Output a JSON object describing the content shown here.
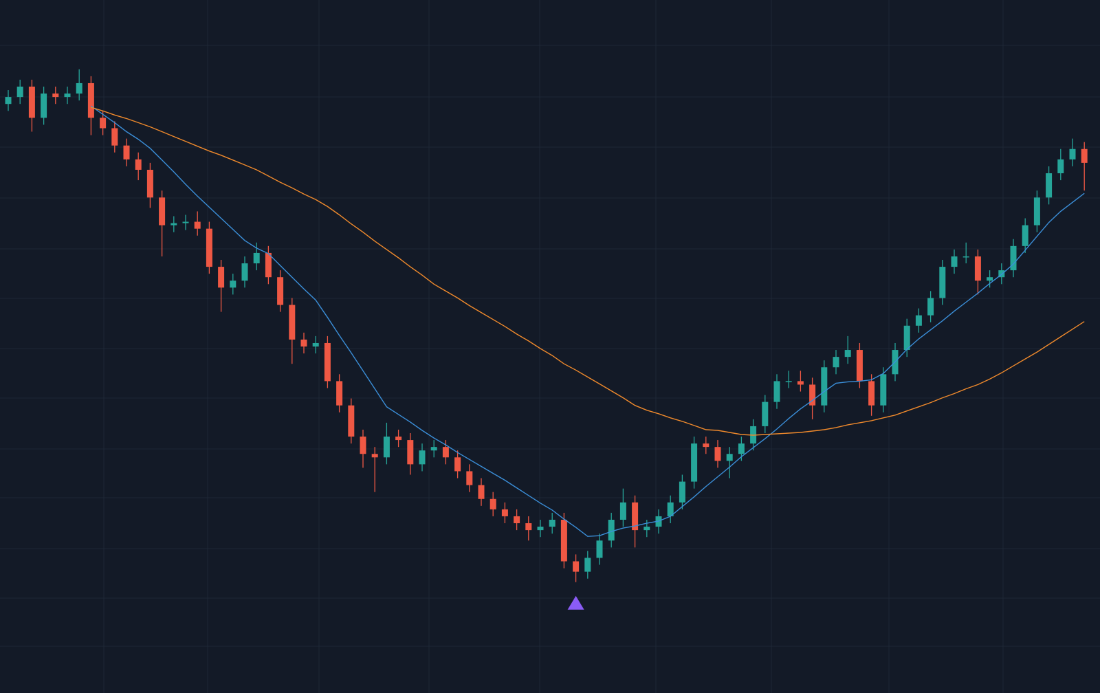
{
  "chart_data": {
    "type": "candlestick",
    "ylim": [
      0,
      100
    ],
    "grid": true,
    "up_color": "#26a69a",
    "down_color": "#ef5844",
    "open": [
      85,
      86,
      87.5,
      83,
      86.5,
      86,
      86.5,
      88,
      83,
      81.5,
      79,
      77,
      75.5,
      71.5,
      67.5,
      67.8,
      68,
      67,
      61.5,
      58.5,
      59.5,
      62,
      63.5,
      60,
      56,
      51,
      50,
      50.5,
      45,
      41.5,
      37,
      34.5,
      34,
      37,
      36.5,
      33,
      35,
      35.5,
      34,
      32,
      30,
      28,
      26.5,
      25.5,
      24.5,
      23.5,
      24,
      25,
      19,
      17.5,
      19.5,
      22,
      25,
      27.5,
      23.5,
      24,
      25.5,
      27.5,
      30.5,
      36,
      35.5,
      33.5,
      34.5,
      36,
      38.5,
      42,
      45,
      45,
      44.5,
      41.5,
      47,
      48.5,
      49.5,
      45,
      41.5,
      46,
      49.5,
      53,
      54.5,
      57,
      61.5,
      63,
      63,
      59.5,
      60,
      61,
      64.5,
      67.5,
      71.5,
      75,
      77,
      78.5
    ],
    "high": [
      87,
      88.5,
      88.5,
      87.5,
      87.5,
      87.5,
      90,
      89,
      84,
      82.5,
      80,
      78,
      76.5,
      72.5,
      68.8,
      69,
      69.5,
      68,
      62.5,
      60.5,
      63,
      65,
      64.5,
      61,
      57,
      52,
      51.5,
      51.5,
      46,
      42.5,
      38,
      35.5,
      39,
      38,
      37.5,
      36,
      36.5,
      36.5,
      35,
      33,
      31,
      29,
      27.5,
      26.5,
      25.5,
      25,
      26,
      26,
      20,
      20.5,
      23,
      26,
      29.5,
      28.5,
      25,
      26.5,
      28.5,
      31.5,
      37,
      37,
      36.5,
      35.5,
      37,
      39.5,
      43,
      46,
      46.5,
      46.5,
      45.5,
      48,
      49.5,
      51.5,
      50.5,
      46,
      47,
      50.5,
      54,
      55.5,
      58,
      62.5,
      64,
      65,
      64,
      61,
      62,
      65.5,
      68.5,
      72.5,
      76,
      78.5,
      80,
      79.5
    ],
    "low": [
      84,
      85,
      81,
      82,
      85,
      85,
      85.5,
      80.5,
      80.5,
      78,
      76,
      74,
      70,
      63,
      66.5,
      66.8,
      66,
      60.5,
      55,
      57.5,
      58.5,
      61,
      59,
      55,
      47.5,
      49,
      49,
      44,
      40.5,
      36,
      32.5,
      29,
      33,
      35.5,
      31.5,
      32,
      34,
      33,
      31,
      29,
      27,
      25.5,
      24.5,
      23.5,
      22,
      22.5,
      23,
      18,
      16,
      16.5,
      18.5,
      21,
      24,
      21,
      22.5,
      23,
      24.5,
      26.5,
      29.5,
      34.5,
      32.5,
      31,
      33.5,
      35,
      37.5,
      41,
      44,
      43.5,
      39.5,
      40.5,
      46,
      47.5,
      44,
      40,
      40.5,
      45,
      48.5,
      52,
      53.5,
      56,
      60.5,
      62,
      57.5,
      58.5,
      59,
      60,
      63.5,
      66.5,
      70.5,
      74,
      76,
      72.5
    ],
    "close": [
      86,
      87.5,
      83,
      86.5,
      86,
      86.5,
      88,
      83,
      81.5,
      79,
      77,
      75.5,
      71.5,
      67.5,
      67.8,
      68,
      67,
      61.5,
      58.5,
      59.5,
      62,
      63.5,
      60,
      56,
      51,
      50,
      50.5,
      45,
      41.5,
      37,
      34.5,
      34,
      37,
      36.5,
      33,
      35,
      35.5,
      34,
      32,
      30,
      28,
      26.5,
      25.5,
      24.5,
      23.5,
      24,
      25,
      19,
      17.5,
      19.5,
      22,
      25,
      27.5,
      23.5,
      24,
      25.5,
      27.5,
      30.5,
      36,
      35.5,
      33.5,
      34.5,
      36,
      38.5,
      42,
      45,
      45,
      44.5,
      41.5,
      47,
      48.5,
      49.5,
      45,
      41.5,
      46,
      49.5,
      53,
      54.5,
      57,
      61.5,
      63,
      63,
      59.5,
      60,
      61,
      64.5,
      67.5,
      71.5,
      75,
      77,
      78.5,
      76.5
    ],
    "series": [
      {
        "color": "#3b8fd9",
        "values": [
          null,
          null,
          null,
          null,
          null,
          null,
          null,
          84.7,
          83.5,
          82.3,
          81.0,
          79.9,
          78.6,
          76.9,
          75.2,
          73.4,
          71.7,
          70.1,
          68.5,
          66.9,
          65.3,
          64.2,
          63.4,
          61.7,
          60.0,
          58.3,
          56.7,
          54.2,
          51.6,
          49.1,
          46.5,
          43.9,
          41.3,
          40.2,
          39.1,
          37.9,
          36.8,
          35.8,
          34.7,
          33.7,
          32.7,
          31.7,
          30.7,
          29.6,
          28.5,
          27.4,
          26.4,
          25.1,
          23.9,
          22.6,
          22.7,
          23.3,
          23.8,
          24.1,
          24.5,
          24.8,
          25.5,
          26.9,
          28.3,
          29.8,
          31.2,
          32.6,
          34.1,
          35.4,
          36.7,
          38.1,
          39.6,
          41.0,
          42.2,
          43.5,
          44.7,
          44.9,
          45.0,
          45.2,
          46.1,
          47.8,
          49.6,
          51.1,
          52.4,
          53.7,
          55.1,
          56.4,
          57.7,
          59.1,
          60.4,
          61.9,
          63.9,
          65.9,
          67.9,
          69.5,
          70.8,
          72.1
        ]
      },
      {
        "color": "#f08a2c",
        "values": [
          null,
          null,
          null,
          null,
          null,
          null,
          null,
          84.5,
          84.0,
          83.4,
          82.9,
          82.3,
          81.7,
          81.0,
          80.3,
          79.6,
          78.9,
          78.2,
          77.6,
          76.9,
          76.2,
          75.5,
          74.6,
          73.7,
          72.9,
          72.0,
          71.2,
          70.2,
          69.0,
          67.7,
          66.5,
          65.2,
          64.0,
          62.8,
          61.5,
          60.3,
          59.0,
          58.0,
          57.0,
          55.9,
          54.9,
          53.9,
          52.9,
          51.8,
          50.8,
          49.7,
          48.7,
          47.5,
          46.6,
          45.6,
          44.6,
          43.6,
          42.6,
          41.5,
          40.8,
          40.3,
          39.7,
          39.2,
          38.6,
          38.0,
          37.9,
          37.6,
          37.3,
          37.2,
          37.3,
          37.4,
          37.5,
          37.6,
          37.8,
          38.0,
          38.3,
          38.7,
          39.0,
          39.3,
          39.7,
          40.1,
          40.7,
          41.3,
          41.9,
          42.6,
          43.2,
          43.9,
          44.5,
          45.3,
          46.2,
          47.2,
          48.2,
          49.2,
          50.3,
          51.4,
          52.5,
          53.6
        ]
      }
    ],
    "buy_signal": {
      "index": 48,
      "color": "#8b5cf6"
    }
  }
}
